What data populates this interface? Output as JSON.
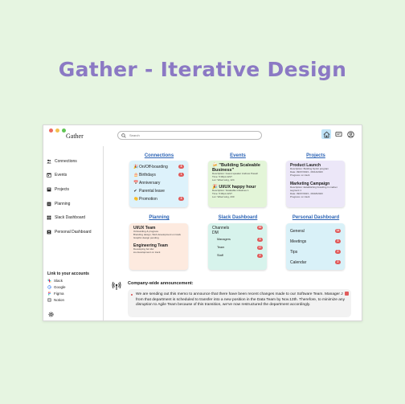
{
  "page_title": "Gather - Iterative Design",
  "app": {
    "brand": "Gather"
  },
  "search": {
    "placeholder": "Search"
  },
  "sidebar": {
    "items": [
      {
        "label": "Connections"
      },
      {
        "label": "Events"
      },
      {
        "label": "Projects"
      },
      {
        "label": "Planning"
      },
      {
        "label": "Slack Dashboard"
      },
      {
        "label": "Personal Dashboard"
      }
    ],
    "links_title": "Link to your accounts",
    "links": [
      {
        "label": "Slack"
      },
      {
        "label": "Google"
      },
      {
        "label": "Figma"
      },
      {
        "label": "Notion"
      }
    ]
  },
  "sections": {
    "connections": {
      "title": "Connections",
      "items": [
        {
          "icon": "🎉",
          "label": "On/Off-boarding",
          "count": "8"
        },
        {
          "icon": "🎂",
          "label": "Birthdays",
          "count": "1"
        },
        {
          "icon": "📅",
          "label": "Anniversary",
          "count": ""
        },
        {
          "icon": "✔",
          "label": "Parental leave",
          "count": ""
        },
        {
          "icon": "👏",
          "label": "Promotion",
          "count": "3"
        }
      ]
    },
    "events": {
      "title": "Events",
      "items": [
        {
          "title": "🍻 \"Building Scaleable Business\"",
          "meta": [
            "Description: Guest speaker Andrew Powell",
            "Time: 5:00pm EST",
            "Loc: Wisel wing, 124"
          ]
        },
        {
          "title": "🎉 UI/UX happy hour",
          "meta": [
            "Description: Scaleable initiatives 1",
            "Time: 5:00pm EST",
            "Loc: Wisel wing, 230"
          ]
        }
      ]
    },
    "projects": {
      "title": "Projects",
      "items": [
        {
          "title": "Product Launch",
          "meta": [
            "Description: Building Sprint program",
            "Date: 09/07/2023 - 09/14/2023",
            "Progress: on track"
          ]
        },
        {
          "title": "Marketing Campaign",
          "meta": [
            "Description: Establishing branding in market segment 1",
            "Date: 09/07/2023 - 09/18/2023",
            "Progress: on track"
          ]
        }
      ]
    },
    "planning": {
      "title": "Planning",
      "items": [
        {
          "title": "UI/UX Team",
          "desc": [
            "Onboarding & progress",
            "Branding design, Web development on track",
            "Graphic design pending"
          ]
        },
        {
          "title": "Engineering Team",
          "desc": [
            "Developing bot idw",
            "ios development on track"
          ]
        }
      ]
    },
    "slack": {
      "title": "Slack Dashboard",
      "header": [
        "Channels",
        "DM"
      ],
      "header_count": "10",
      "items": [
        {
          "label": "Managers",
          "count": "5"
        },
        {
          "label": "Team",
          "count": "17"
        },
        {
          "label": "Staff",
          "count": "2"
        }
      ]
    },
    "personal": {
      "title": "Personal Dashboard",
      "items": [
        {
          "label": "General",
          "count": "14"
        },
        {
          "label": "Meetings",
          "count": "3"
        },
        {
          "label": "Tips",
          "count": "2"
        },
        {
          "label": "Calendar",
          "count": "2"
        }
      ]
    }
  },
  "announcement": {
    "title": "Company-wide announcement:",
    "text": "We are sending out this memo to announce that there have been recent changes made to our Software Team. Manager J from that department is scheduled to transfer into a new position in the Data Team by Nov.13th. Therefore, to minimize any disruption to Agile Team because of this transition, we've now restructured the department accordingly."
  }
}
